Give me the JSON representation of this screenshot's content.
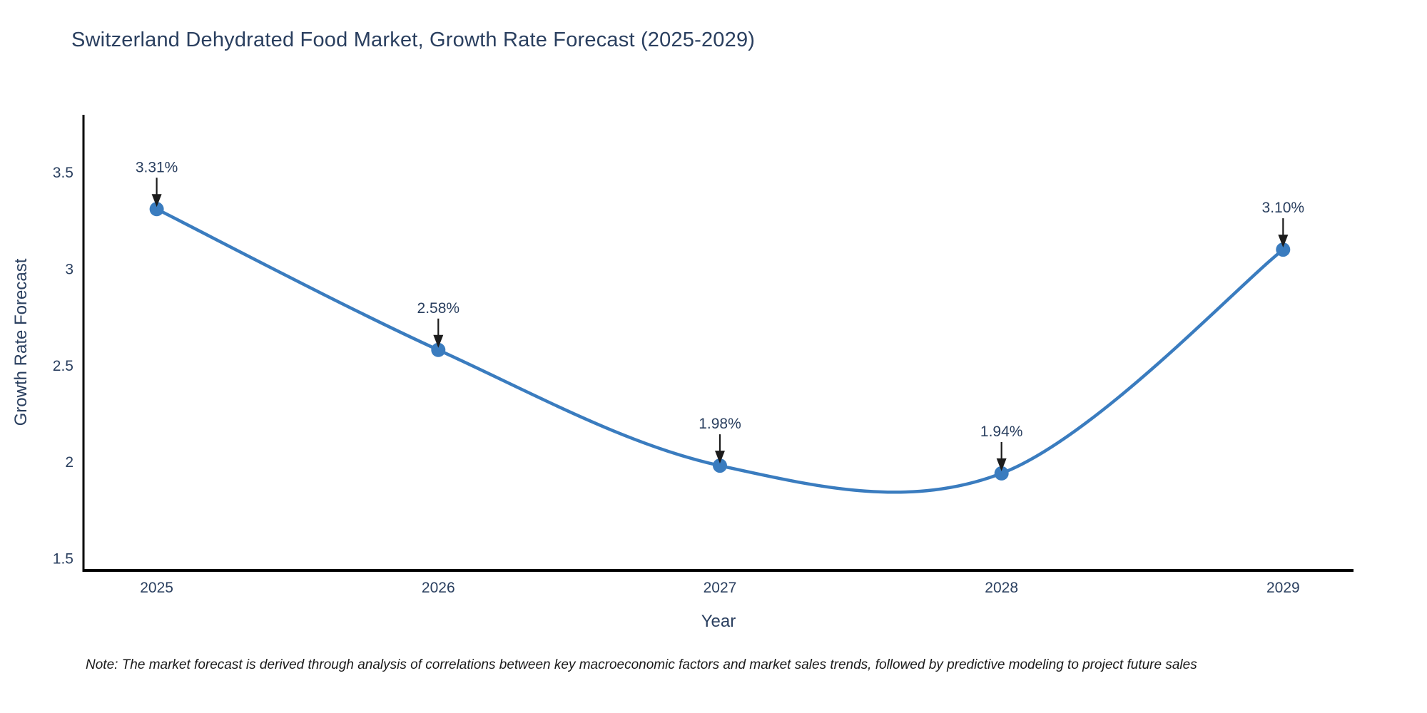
{
  "title": "Switzerland Dehydrated Food Market, Growth Rate Forecast (2025-2029)",
  "note": "Note: The market forecast is derived through analysis of correlations between key macroeconomic factors and market sales trends, followed by predictive modeling to project future sales",
  "chart_data": {
    "type": "line",
    "title": "Switzerland Dehydrated Food Market, Growth Rate Forecast (2025-2029)",
    "xlabel": "Year",
    "ylabel": "Growth Rate Forecast",
    "x": [
      2025,
      2026,
      2027,
      2028,
      2029
    ],
    "values": [
      3.31,
      2.58,
      1.98,
      1.94,
      3.1
    ],
    "point_labels": [
      "3.31%",
      "2.58%",
      "1.98%",
      "1.94%",
      "3.10%"
    ],
    "xticks": [
      "2025",
      "2026",
      "2027",
      "2028",
      "2029"
    ],
    "yticks": [
      "1.5",
      "2",
      "2.5",
      "3",
      "3.5"
    ],
    "xlim": [
      2024.74,
      2029.25
    ],
    "ylim": [
      1.437,
      3.799
    ],
    "line_shape": "spline",
    "grid": false,
    "legend": "none",
    "colors": {
      "line": "#3a7cbf",
      "marker": "#3a7cbf",
      "axis": "#000000",
      "tick_text": "#2a3f5f",
      "annotation_text": "#2a3f5f",
      "arrow": "#1c1c1c",
      "title_text": "#2a3f5f",
      "background": "#ffffff"
    }
  }
}
